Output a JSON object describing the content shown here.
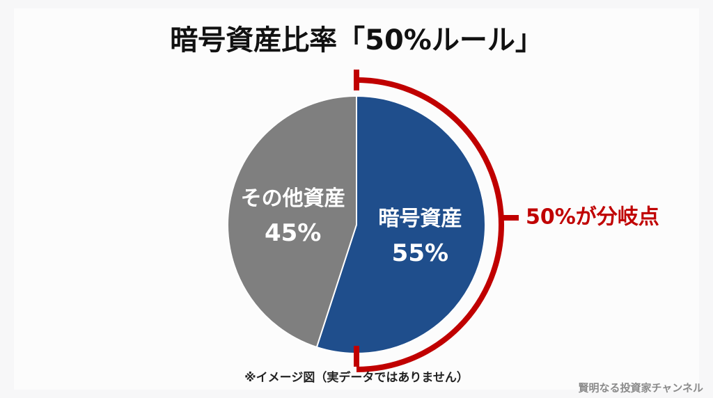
{
  "chart_data": {
    "type": "pie",
    "title": "暗号資産比率「50%ルール」",
    "categories": [
      "暗号資産",
      "その他資産"
    ],
    "values": [
      55,
      45
    ],
    "value_labels": [
      "55%",
      "45%"
    ],
    "colors": [
      "#1f4e8c",
      "#7f7f7f"
    ],
    "annotation": "50%が分岐点",
    "annotation_color": "#c00000",
    "note": "※イメージ図（実データではありません）",
    "watermark": "賢明なる投資家チャンネル"
  }
}
